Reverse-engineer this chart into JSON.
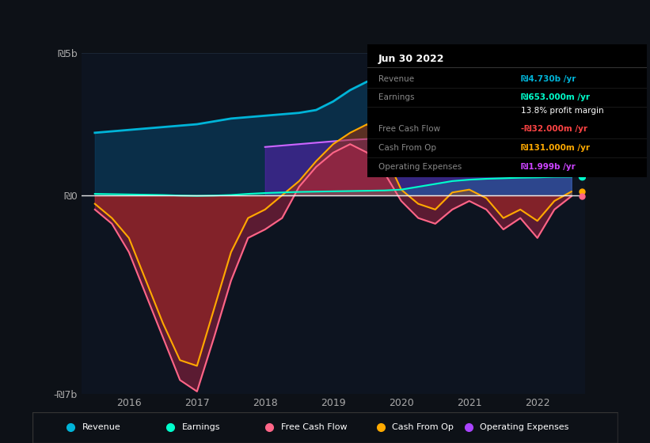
{
  "bg_color": "#0d1117",
  "plot_bg_color": "#0d1420",
  "x_years": [
    2015.5,
    2015.75,
    2016.0,
    2016.25,
    2016.5,
    2016.75,
    2017.0,
    2017.25,
    2017.5,
    2017.75,
    2018.0,
    2018.25,
    2018.5,
    2018.75,
    2019.0,
    2019.25,
    2019.5,
    2019.75,
    2020.0,
    2020.25,
    2020.5,
    2020.75,
    2021.0,
    2021.25,
    2021.5,
    2021.75,
    2022.0,
    2022.25,
    2022.5
  ],
  "revenue": [
    2.2,
    2.25,
    2.3,
    2.35,
    2.4,
    2.45,
    2.5,
    2.6,
    2.7,
    2.75,
    2.8,
    2.85,
    2.9,
    3.0,
    3.3,
    3.7,
    4.0,
    3.8,
    3.6,
    3.4,
    3.3,
    3.4,
    3.5,
    3.6,
    3.8,
    4.2,
    4.5,
    4.7,
    4.73
  ],
  "earnings": [
    0.05,
    0.04,
    0.03,
    0.02,
    0.01,
    -0.01,
    -0.02,
    -0.01,
    0.01,
    0.05,
    0.08,
    0.1,
    0.12,
    0.13,
    0.14,
    0.15,
    0.16,
    0.17,
    0.2,
    0.3,
    0.4,
    0.5,
    0.55,
    0.58,
    0.6,
    0.62,
    0.63,
    0.65,
    0.653
  ],
  "free_cash_flow": [
    -0.5,
    -1.0,
    -2.0,
    -3.5,
    -5.0,
    -6.5,
    -6.9,
    -5.0,
    -3.0,
    -1.5,
    -1.2,
    -0.8,
    0.3,
    1.0,
    1.5,
    1.8,
    1.5,
    0.8,
    -0.2,
    -0.8,
    -1.0,
    -0.5,
    -0.2,
    -0.5,
    -1.2,
    -0.8,
    -1.5,
    -0.5,
    -0.032
  ],
  "cash_from_op": [
    -0.3,
    -0.8,
    -1.5,
    -3.0,
    -4.5,
    -5.8,
    -6.0,
    -4.0,
    -2.0,
    -0.8,
    -0.5,
    0.0,
    0.5,
    1.2,
    1.8,
    2.2,
    2.5,
    1.5,
    0.2,
    -0.3,
    -0.5,
    0.1,
    0.2,
    -0.1,
    -0.8,
    -0.5,
    -0.9,
    -0.2,
    0.131
  ],
  "op_expenses": [
    0.0,
    0.0,
    0.0,
    0.0,
    0.0,
    0.0,
    0.0,
    0.0,
    0.0,
    0.0,
    1.7,
    1.75,
    1.8,
    1.85,
    1.9,
    1.95,
    1.98,
    1.95,
    1.9,
    1.85,
    1.8,
    1.82,
    1.85,
    1.9,
    1.92,
    1.95,
    1.97,
    1.99,
    1.999
  ],
  "ylim": [
    -7,
    5
  ],
  "yticks": [
    -7,
    0,
    5
  ],
  "ytick_labels": [
    "-₪7b",
    "₪0",
    "₪5b"
  ],
  "xticks": [
    2016,
    2017,
    2018,
    2019,
    2020,
    2021,
    2022
  ],
  "legend_items": [
    {
      "label": "Revenue",
      "color": "#00b4d8"
    },
    {
      "label": "Earnings",
      "color": "#00ffcc"
    },
    {
      "label": "Free Cash Flow",
      "color": "#ff6688"
    },
    {
      "label": "Cash From Op",
      "color": "#ffaa00"
    },
    {
      "label": "Operating Expenses",
      "color": "#aa44ff"
    }
  ],
  "revenue_line_color": "#00b4d8",
  "revenue_fill_color": "#0a3a5a",
  "earnings_line_color": "#00ffcc",
  "fcf_line_color": "#ff6688",
  "fcf_fill_color": "#aa2244",
  "cashop_line_color": "#ffaa00",
  "cashop_fill_color": "#aa3300",
  "opex_fill_color": "#5522aa",
  "opex_line_color": "#cc66ff",
  "zero_line_color": "#ffffff",
  "grid_color": "#1e2a3a",
  "info_box": {
    "date": "Jun 30 2022",
    "rows": [
      {
        "label": "Revenue",
        "value": "₪4.730b /yr",
        "value_color": "#00b4d8"
      },
      {
        "label": "Earnings",
        "value": "₪653.000m /yr",
        "value_color": "#00ffcc"
      },
      {
        "label": "",
        "value": "13.8% profit margin",
        "value_color": "#ffffff"
      },
      {
        "label": "Free Cash Flow",
        "value": "-₪32.000m /yr",
        "value_color": "#ff4444"
      },
      {
        "label": "Cash From Op",
        "value": "₪131.000m /yr",
        "value_color": "#ffaa00"
      },
      {
        "label": "Operating Expenses",
        "value": "₪1.999b /yr",
        "value_color": "#cc44ff"
      }
    ]
  }
}
